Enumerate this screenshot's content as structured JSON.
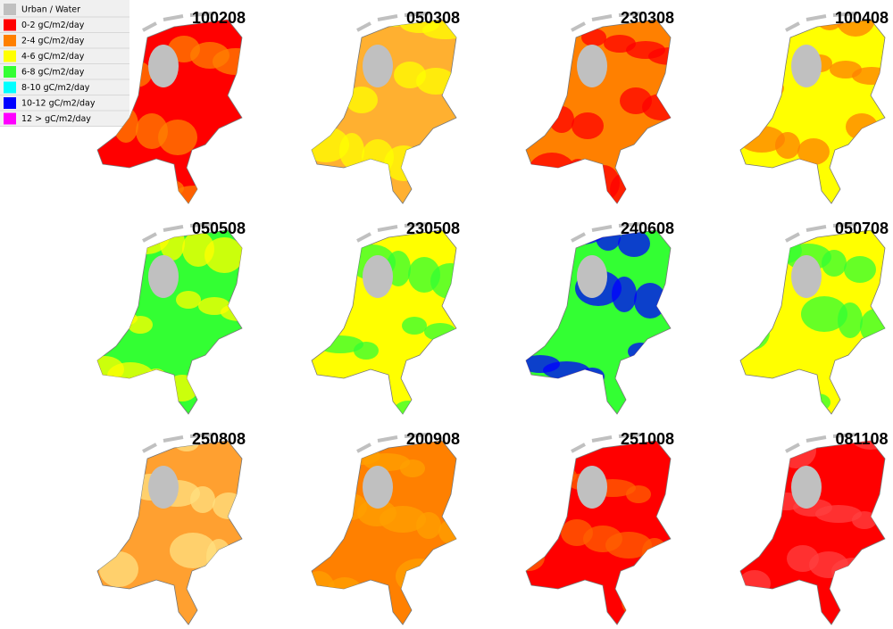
{
  "legend": [
    {
      "label": "Urban / Water",
      "color": "#c0c0c0"
    },
    {
      "label": "0-2 gC/m2/day",
      "color": "#ff0000"
    },
    {
      "label": "2-4 gC/m2/day",
      "color": "#ff8000"
    },
    {
      "label": "4-6 gC/m2/day",
      "color": "#ffff00"
    },
    {
      "label": "6-8 gC/m2/day",
      "color": "#33ff33"
    },
    {
      "label": "8-10 gC/m2/day",
      "color": "#00ffff"
    },
    {
      "label": "10-12 gC/m2/day",
      "color": "#0000ff"
    },
    {
      "label": "12 > gC/m2/day",
      "color": "#ff00ff"
    }
  ],
  "panels": [
    {
      "title": "100208",
      "colors": [
        "#ff0000",
        "#ff8000"
      ]
    },
    {
      "title": "050308",
      "colors": [
        "#ffb030",
        "#ffff00"
      ]
    },
    {
      "title": "230308",
      "colors": [
        "#ff8000",
        "#ff0000"
      ]
    },
    {
      "title": "100408",
      "colors": [
        "#ffff00",
        "#ff8000"
      ]
    },
    {
      "title": "050508",
      "colors": [
        "#33ff33",
        "#ffff00"
      ]
    },
    {
      "title": "230508",
      "colors": [
        "#ffff00",
        "#33ff33"
      ]
    },
    {
      "title": "240608",
      "colors": [
        "#33ff33",
        "#0000ff"
      ]
    },
    {
      "title": "050708",
      "colors": [
        "#ffff00",
        "#33ff33"
      ]
    },
    {
      "title": "250808",
      "colors": [
        "#ffa030",
        "#ffe080"
      ]
    },
    {
      "title": "200908",
      "colors": [
        "#ff8000",
        "#ffa000"
      ]
    },
    {
      "title": "251008",
      "colors": [
        "#ff0000",
        "#ff6000"
      ]
    },
    {
      "title": "081108",
      "colors": [
        "#ff0000",
        "#ff4040"
      ]
    }
  ]
}
